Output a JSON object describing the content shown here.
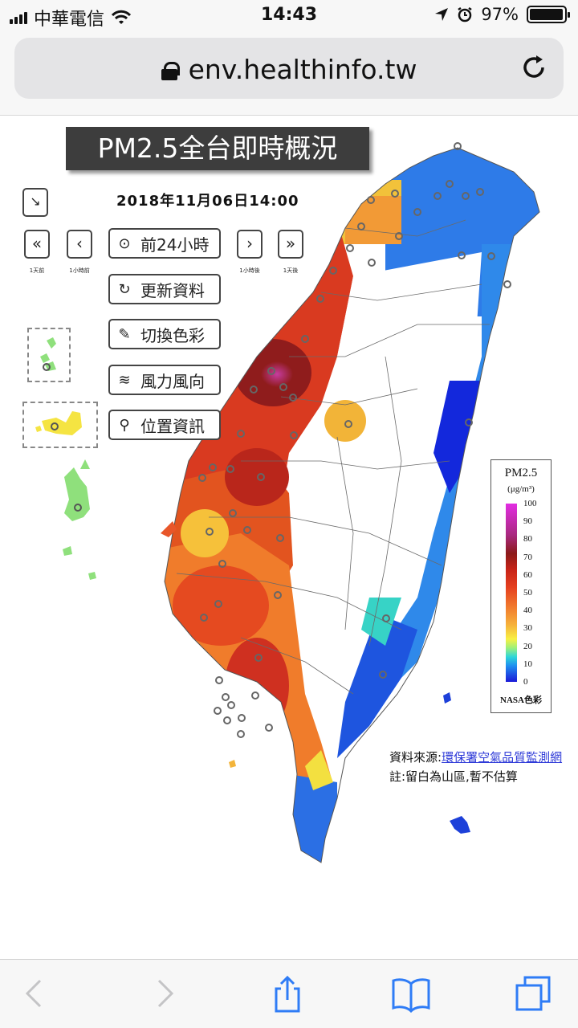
{
  "status": {
    "carrier": "中華電信",
    "time": "14:43",
    "battery": "97%",
    "battery_level": 0.97,
    "icons": [
      "signal-icon",
      "wifi-icon",
      "location-icon",
      "alarm-icon",
      "battery-icon"
    ]
  },
  "browser": {
    "url": "env.healthinfo.tw",
    "icons": [
      "lock-icon",
      "reload-icon",
      "back-icon",
      "forward-icon",
      "share-icon",
      "bookmarks-icon",
      "tabs-icon"
    ]
  },
  "page": {
    "title": "PM2.5全台即時概況",
    "datetime": "2018年11月06日14:00",
    "nav": {
      "day_back_label": "1天前",
      "hour_back_label": "1小時前",
      "hour_forward_label": "1小時後",
      "day_forward_label": "1天後"
    },
    "buttons": {
      "prev24": "前24小時",
      "refresh": "更新資料",
      "colors": "切換色彩",
      "wind": "風力風向",
      "location": "位置資訊"
    },
    "legend": {
      "title": "PM2.5",
      "unit": "(μg/m³)",
      "ticks": [
        "100",
        "90",
        "80",
        "70",
        "60",
        "50",
        "40",
        "30",
        "20",
        "10",
        "0"
      ],
      "note": "NASA色彩"
    },
    "source_prefix": "資料來源:",
    "source_link": "環保署空氣品質監測網",
    "footnote": "註:留白為山區,暫不估算"
  }
}
